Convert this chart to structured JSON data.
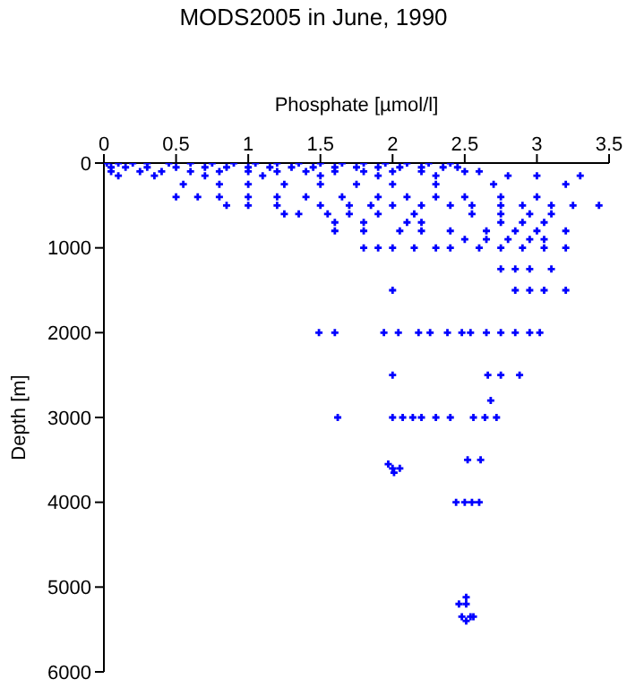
{
  "chart_data": {
    "type": "scatter",
    "title": "MODS2005 in June, 1990",
    "xlabel": "Phosphate [µmol/l]",
    "ylabel": "Depth [m]",
    "xlim": [
      0,
      3.5
    ],
    "xticks": [
      0,
      0.5,
      1,
      1.5,
      2,
      2.5,
      3,
      3.5
    ],
    "ylim": [
      6000,
      0
    ],
    "yticks": [
      0,
      1000,
      2000,
      3000,
      4000,
      5000,
      6000
    ],
    "grid": false,
    "legend": false,
    "marker": "cross",
    "series": [
      {
        "color": "#0000ff",
        "x": [
          0.02,
          0.1,
          0.2,
          0.3,
          0.45,
          0.6,
          0.75,
          0.9,
          1.05,
          1.2,
          1.35,
          1.5,
          1.65,
          1.8,
          1.95,
          2.1,
          2.25,
          2.4,
          0.05,
          0.15,
          0.3,
          0.5,
          0.7,
          0.85,
          1.0,
          1.15,
          1.3,
          1.45,
          1.6,
          1.75,
          1.9,
          2.05,
          2.2,
          2.35,
          2.45,
          0.05,
          0.25,
          0.4,
          0.6,
          0.8,
          1.0,
          1.2,
          1.4,
          1.6,
          1.8,
          2.0,
          2.2,
          2.5,
          2.6,
          0.1,
          0.35,
          0.7,
          1.1,
          1.5,
          1.9,
          2.3,
          2.8,
          3.0,
          3.3,
          0.55,
          0.8,
          1.0,
          1.25,
          1.5,
          1.75,
          2.0,
          2.3,
          2.7,
          3.2,
          0.5,
          0.65,
          0.8,
          1.0,
          1.2,
          1.4,
          1.65,
          1.9,
          2.1,
          2.3,
          2.5,
          2.75,
          3.0,
          0.85,
          1.0,
          1.2,
          1.5,
          1.7,
          1.85,
          2.0,
          2.2,
          2.4,
          2.55,
          2.75,
          2.9,
          3.1,
          3.25,
          3.43,
          1.25,
          1.35,
          1.55,
          1.7,
          1.9,
          2.15,
          2.55,
          2.75,
          2.95,
          3.1,
          1.6,
          1.8,
          2.1,
          2.2,
          2.75,
          2.9,
          3.05,
          1.6,
          1.8,
          2.05,
          2.2,
          2.4,
          2.65,
          2.85,
          3.0,
          3.2,
          2.5,
          2.65,
          2.8,
          2.95,
          3.05,
          1.8,
          1.9,
          2.0,
          2.15,
          2.3,
          2.4,
          2.6,
          2.75,
          2.9,
          3.05,
          3.2,
          2.75,
          2.85,
          2.95,
          3.1,
          2.0,
          2.85,
          2.95,
          3.05,
          3.2,
          1.49,
          1.6,
          1.94,
          2.04,
          2.18,
          2.26,
          2.38,
          2.48,
          2.54,
          2.65,
          2.75,
          2.85,
          2.95,
          3.02,
          2.0,
          2.66,
          2.75,
          2.88,
          2.68,
          1.62,
          2.0,
          2.07,
          2.14,
          2.2,
          2.3,
          2.4,
          2.56,
          2.64,
          2.72,
          2.52,
          2.61,
          1.97,
          2.0,
          2.05,
          2.01,
          2.44,
          2.5,
          2.55,
          2.6,
          2.51,
          2.46,
          2.51,
          2.48,
          2.54,
          2.56,
          2.51
        ],
        "values": [
          0,
          0,
          0,
          0,
          0,
          0,
          0,
          0,
          0,
          0,
          0,
          0,
          0,
          0,
          0,
          0,
          0,
          0,
          50,
          50,
          50,
          50,
          50,
          50,
          50,
          50,
          50,
          50,
          50,
          50,
          50,
          50,
          50,
          50,
          50,
          100,
          100,
          100,
          100,
          100,
          100,
          100,
          100,
          100,
          100,
          100,
          100,
          100,
          100,
          150,
          150,
          150,
          150,
          150,
          150,
          150,
          150,
          150,
          150,
          250,
          250,
          250,
          250,
          250,
          250,
          250,
          250,
          250,
          250,
          400,
          400,
          400,
          400,
          400,
          400,
          400,
          400,
          400,
          400,
          400,
          400,
          400,
          500,
          500,
          500,
          500,
          500,
          500,
          500,
          500,
          500,
          500,
          500,
          500,
          500,
          500,
          500,
          600,
          600,
          600,
          600,
          600,
          600,
          600,
          600,
          600,
          600,
          700,
          700,
          700,
          700,
          700,
          700,
          700,
          800,
          800,
          800,
          800,
          800,
          800,
          800,
          800,
          800,
          900,
          900,
          900,
          900,
          900,
          1000,
          1000,
          1000,
          1000,
          1000,
          1000,
          1000,
          1000,
          1000,
          1000,
          1000,
          1250,
          1250,
          1250,
          1250,
          1500,
          1500,
          1500,
          1500,
          1500,
          2000,
          2000,
          2000,
          2000,
          2000,
          2000,
          2000,
          2000,
          2000,
          2000,
          2000,
          2000,
          2000,
          2000,
          2500,
          2500,
          2500,
          2500,
          2800,
          3000,
          3000,
          3000,
          3000,
          3000,
          3000,
          3000,
          3000,
          3000,
          3000,
          3500,
          3500,
          3550,
          3600,
          3600,
          3650,
          4000,
          4000,
          4000,
          4000,
          5120,
          5200,
          5200,
          5350,
          5350,
          5350,
          5400
        ]
      }
    ]
  }
}
